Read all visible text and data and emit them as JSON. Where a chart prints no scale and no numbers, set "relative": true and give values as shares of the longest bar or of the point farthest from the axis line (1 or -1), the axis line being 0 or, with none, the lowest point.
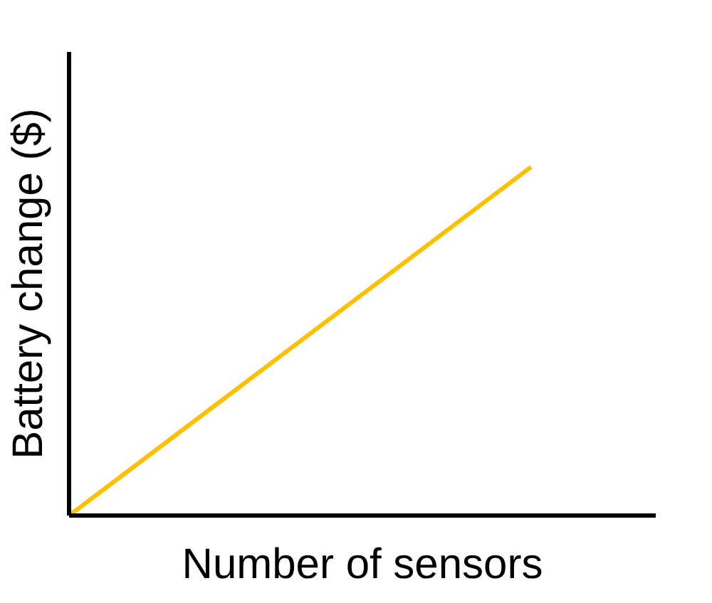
{
  "chart_data": {
    "type": "line",
    "xlabel": "Number of sensors",
    "ylabel": "Battery change ($)",
    "categories": [
      null,
      null
    ],
    "values": [
      0,
      1
    ],
    "color": "#ffc000",
    "relative": true,
    "marker": "none",
    "line_style": "solid"
  }
}
